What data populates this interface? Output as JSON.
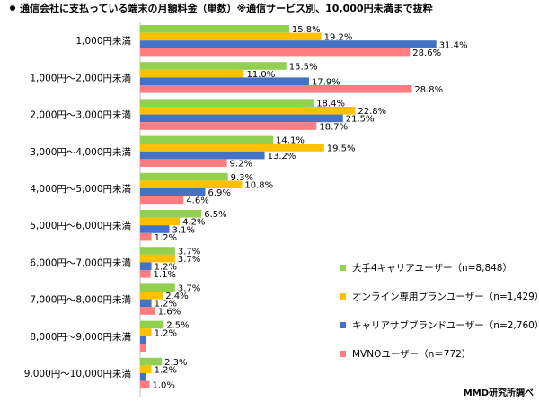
{
  "chart_data": {
    "type": "bar",
    "orientation": "horizontal",
    "title": "通信会社に支払っている端末の月額料金（単数）※通信サービス別、10,000円未満まで抜粋",
    "categories": [
      "1,000円未満",
      "1,000円～2,000円未満",
      "2,000円～3,000円未満",
      "3,000円～4,000円未満",
      "4,000円～5,000円未満",
      "5,000円～6,000円未満",
      "6,000円～7,000円未満",
      "7,000円～8,000円未満",
      "8,000円～9,000円未満",
      "9,000円～10,000円未満"
    ],
    "series": [
      {
        "name": "大手4キャリアユーザー（n=8,848）",
        "color": "#92d050",
        "values": [
          15.8,
          15.5,
          18.4,
          14.1,
          9.3,
          6.5,
          3.7,
          3.7,
          2.5,
          2.3
        ]
      },
      {
        "name": "オンライン専用プランユーザー（n=1,429）",
        "color": "#ffc000",
        "values": [
          19.2,
          11.0,
          22.8,
          19.5,
          10.8,
          4.2,
          3.7,
          2.4,
          1.2,
          1.2
        ]
      },
      {
        "name": "キャリアサブブランドユーザー（n=2,760）",
        "color": "#4472c4",
        "values": [
          31.4,
          17.9,
          21.5,
          13.2,
          6.9,
          3.1,
          1.2,
          1.2,
          null,
          null
        ]
      },
      {
        "name": "MVNOユーザー（n＝772）",
        "color": "#ff7c80",
        "values": [
          28.6,
          28.8,
          18.7,
          9.2,
          4.6,
          1.2,
          1.1,
          1.6,
          null,
          1.0
        ]
      }
    ],
    "value_suffix": "%",
    "xlim": [
      0,
      35
    ],
    "grid": false,
    "legend_position": "bottom-right"
  },
  "credit": "MMD研究所調べ"
}
